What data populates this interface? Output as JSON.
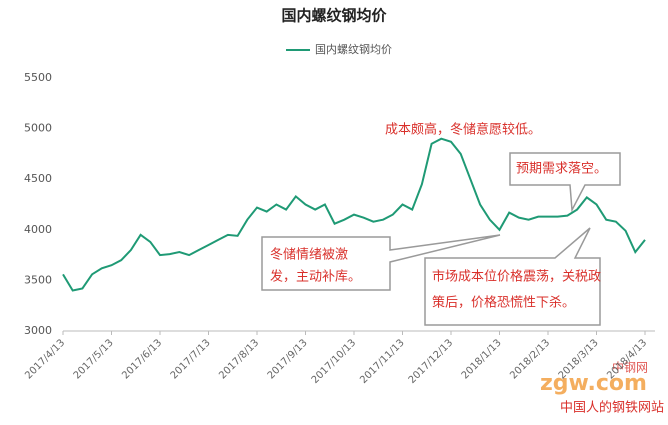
{
  "chart_data": {
    "type": "line",
    "title": "国内螺纹钢均价",
    "categories": [
      "2017/4/13",
      null,
      null,
      null,
      null,
      "2017/5/13",
      null,
      null,
      null,
      null,
      "2017/6/13",
      null,
      null,
      null,
      null,
      "2017/7/13",
      null,
      null,
      null,
      null,
      "2017/8/13",
      null,
      null,
      null,
      null,
      "2017/9/13",
      null,
      null,
      null,
      null,
      "2017/10/13",
      null,
      null,
      null,
      null,
      "2017/11/13",
      null,
      null,
      null,
      null,
      "2017/12/13",
      null,
      null,
      null,
      null,
      "2018/1/13",
      null,
      null,
      null,
      null,
      "2018/2/13",
      null,
      null,
      null,
      null,
      "2018/3/13",
      null,
      null,
      null,
      null,
      "2018/4/13"
    ],
    "series": [
      {
        "name": "国内螺纹钢均价",
        "color": "#1f9a75",
        "values": [
          3560,
          3400,
          3420,
          3560,
          3620,
          3650,
          3700,
          3800,
          3950,
          3880,
          3750,
          3760,
          3780,
          3750,
          3800,
          3850,
          3900,
          3950,
          3940,
          4100,
          4220,
          4180,
          4250,
          4200,
          4330,
          4250,
          4200,
          4250,
          4060,
          4100,
          4150,
          4120,
          4080,
          4100,
          4150,
          4250,
          4200,
          4450,
          4850,
          4900,
          4870,
          4750,
          4500,
          4250,
          4100,
          4000,
          4170,
          4120,
          4100,
          4130,
          4130,
          4130,
          4140,
          4200,
          4320,
          4250,
          4100,
          4080,
          3990,
          3780,
          3900
        ]
      }
    ],
    "ylim": [
      3000,
      5500
    ],
    "yticks": [
      3000,
      3500,
      4000,
      4500,
      5000,
      5500
    ],
    "grid": false,
    "legend": "top",
    "annotations": [
      [
        "成本颇高，冬储意愿较低。"
      ],
      [
        "预期需求落空。"
      ],
      [
        "冬储情绪被激",
        "发，主动补库。"
      ],
      [
        "市场成本位价格震荡，关税政",
        "策后，价格恐慌性下杀。"
      ]
    ],
    "watermark": [
      "zgw.com",
      "中钢网",
      "中国人的钢铁网站"
    ]
  }
}
